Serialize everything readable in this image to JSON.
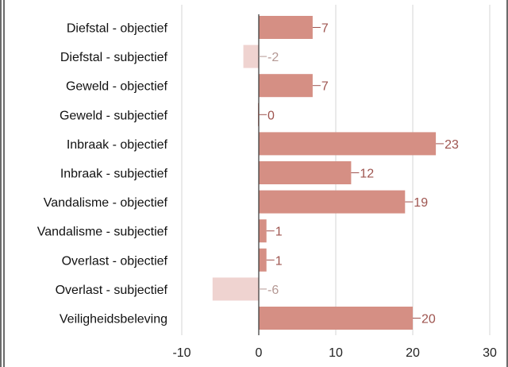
{
  "chart_data": {
    "type": "bar",
    "orientation": "horizontal",
    "categories": [
      "Diefstal - objectief",
      "Diefstal - subjectief",
      "Geweld - objectief",
      "Geweld - subjectief",
      "Inbraak - objectief",
      "Inbraak - subjectief",
      "Vandalisme - objectief",
      "Vandalisme - subjectief",
      "Overlast - objectief",
      "Overlast - subjectief",
      "Veiligheidsbeleving"
    ],
    "values": [
      7,
      -2,
      7,
      0,
      23,
      12,
      19,
      1,
      1,
      -6,
      20
    ],
    "value_labels": [
      "7",
      "-2",
      "7",
      "0",
      "23",
      "12",
      "19",
      "1",
      "1",
      "-6",
      "20"
    ],
    "xlim": [
      -10,
      30
    ],
    "xticks": [
      -10,
      0,
      10,
      20,
      30
    ],
    "xtick_labels": [
      "-10",
      "0",
      "10",
      "20",
      "30"
    ],
    "grid": true,
    "legend": "none",
    "colors": {
      "positive": "#d58f84",
      "negative": "#efd3d0",
      "positive_label": "#9e544f",
      "negative_label": "#b49894",
      "grid": "#d6d6d6",
      "axis": "#333333"
    }
  }
}
